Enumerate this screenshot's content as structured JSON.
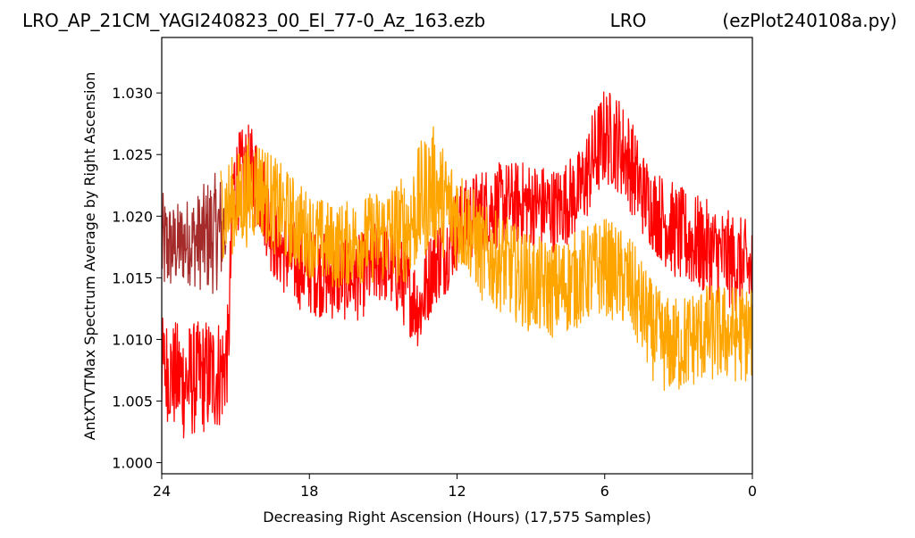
{
  "header": {
    "left": "LRO_AP_21CM_YAGI240823_00_El_77-0_Az_163.ezb",
    "center": "LRO",
    "right": "(ezPlot240108a.py)"
  },
  "chart_data": {
    "type": "line",
    "xlabel": "Decreasing Right Ascension (Hours) (17,575 Samples)",
    "ylabel": "AntXTVTMax Spectrum Average by Right Ascension",
    "x_ticks": [
      "24",
      "18",
      "12",
      "6",
      "0"
    ],
    "y_ticks": [
      "1.000",
      "1.005",
      "1.010",
      "1.015",
      "1.020",
      "1.025",
      "1.030"
    ],
    "xlim": [
      24,
      0
    ],
    "ylim": [
      0.9991,
      1.0345
    ],
    "grid": false,
    "series": [
      {
        "color": "#a52a2a",
        "x": [
          24,
          23.5,
          23,
          22.5,
          22,
          21.5,
          21.4
        ],
        "mean": [
          1.0175,
          1.0175,
          1.018,
          1.018,
          1.0185,
          1.019,
          1.019
        ],
        "spread": [
          0.0045,
          0.0035,
          0.0035,
          0.004,
          0.005,
          0.0045,
          0.004
        ]
      },
      {
        "color": "#ff0000",
        "x": [
          24,
          23.5,
          23,
          22.5,
          22,
          21.5,
          21.3,
          21.1,
          20.5,
          20,
          19.5,
          19,
          18.5,
          18,
          17,
          16,
          15,
          14.5,
          14,
          13.5,
          13,
          12.5,
          12,
          11,
          10,
          9,
          8,
          7,
          6.5,
          6,
          5.5,
          5,
          4.5,
          4,
          3,
          2,
          1,
          0
        ],
        "mean": [
          1.008,
          1.007,
          1.0065,
          1.007,
          1.007,
          1.0075,
          1.009,
          1.0225,
          1.0235,
          1.0225,
          1.0185,
          1.017,
          1.016,
          1.0155,
          1.015,
          1.015,
          1.0165,
          1.0155,
          1.014,
          1.0125,
          1.016,
          1.017,
          1.019,
          1.0205,
          1.021,
          1.021,
          1.0205,
          1.022,
          1.0245,
          1.0265,
          1.026,
          1.0245,
          1.022,
          1.0205,
          1.0185,
          1.0175,
          1.0165,
          1.0155
        ],
        "spread": [
          0.004,
          0.0045,
          0.005,
          0.0045,
          0.005,
          0.0045,
          0.004,
          0.004,
          0.004,
          0.004,
          0.0035,
          0.0035,
          0.0035,
          0.0035,
          0.0035,
          0.0035,
          0.0035,
          0.0035,
          0.0035,
          0.0035,
          0.0035,
          0.0035,
          0.0035,
          0.0035,
          0.0035,
          0.0035,
          0.0035,
          0.0035,
          0.004,
          0.004,
          0.004,
          0.004,
          0.0035,
          0.0035,
          0.004,
          0.004,
          0.004,
          0.004
        ]
      },
      {
        "color": "#ffa500",
        "x": [
          21.6,
          21,
          20.5,
          20,
          19.5,
          19,
          18,
          17,
          16,
          15,
          14,
          13.5,
          13,
          12.5,
          12,
          11.5,
          11,
          10,
          9,
          8,
          7,
          6,
          5,
          4.5,
          4,
          3.5,
          3,
          2.5,
          2,
          1,
          0
        ],
        "mean": [
          1.0205,
          1.021,
          1.022,
          1.0225,
          1.021,
          1.02,
          1.0185,
          1.0175,
          1.018,
          1.0185,
          1.019,
          1.021,
          1.0225,
          1.021,
          1.02,
          1.019,
          1.017,
          1.016,
          1.0145,
          1.014,
          1.015,
          1.016,
          1.0145,
          1.0125,
          1.0105,
          1.0095,
          1.0095,
          1.01,
          1.0105,
          1.0105,
          1.0105
        ],
        "spread": [
          0.004,
          0.004,
          0.0045,
          0.004,
          0.004,
          0.004,
          0.0035,
          0.0035,
          0.0035,
          0.004,
          0.0045,
          0.005,
          0.005,
          0.0045,
          0.0045,
          0.004,
          0.004,
          0.004,
          0.004,
          0.004,
          0.004,
          0.004,
          0.004,
          0.004,
          0.004,
          0.004,
          0.004,
          0.004,
          0.004,
          0.004,
          0.004
        ]
      }
    ]
  }
}
